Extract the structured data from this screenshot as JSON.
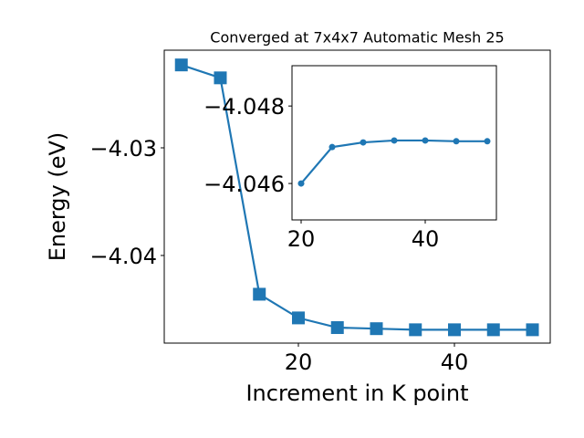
{
  "chart_data": [
    {
      "type": "line",
      "title": "Converged at 7x4x7 Automatic Mesh 25",
      "xlabel": "Increment in K point",
      "ylabel": "Energy (eV)",
      "x": [
        5,
        10,
        15,
        20,
        25,
        30,
        35,
        40,
        45,
        50
      ],
      "values": [
        -4.0223,
        -4.0235,
        -4.0436,
        -4.0458,
        -4.0467,
        -4.0468,
        -4.0469,
        -4.0469,
        -4.0469,
        -4.0469
      ],
      "color": "#1f77b4",
      "marker": "square",
      "xlim": [
        2.81,
        52.28
      ],
      "ylim": [
        -4.04814,
        -4.02093
      ],
      "xticks": [
        20,
        40
      ],
      "yticks": [
        {
          "value": -4.04,
          "label": "−4.04"
        },
        {
          "value": -4.03,
          "label": "−4.03"
        }
      ]
    },
    {
      "type": "line",
      "x": [
        20,
        25,
        30,
        35,
        40,
        45,
        50
      ],
      "values": [
        -4.046,
        -4.04694,
        -4.04706,
        -4.04711,
        -4.04711,
        -4.04709,
        -4.04709
      ],
      "color": "#1f77b4",
      "marker": "circle",
      "xlim": [
        18.53,
        51.47
      ],
      "ylim": [
        -4.04506,
        -4.04904
      ],
      "xticks": [
        20,
        40
      ],
      "yticks": [
        {
          "value": -4.046,
          "label": "−4.046"
        },
        {
          "value": -4.048,
          "label": "−4.048"
        }
      ]
    }
  ]
}
